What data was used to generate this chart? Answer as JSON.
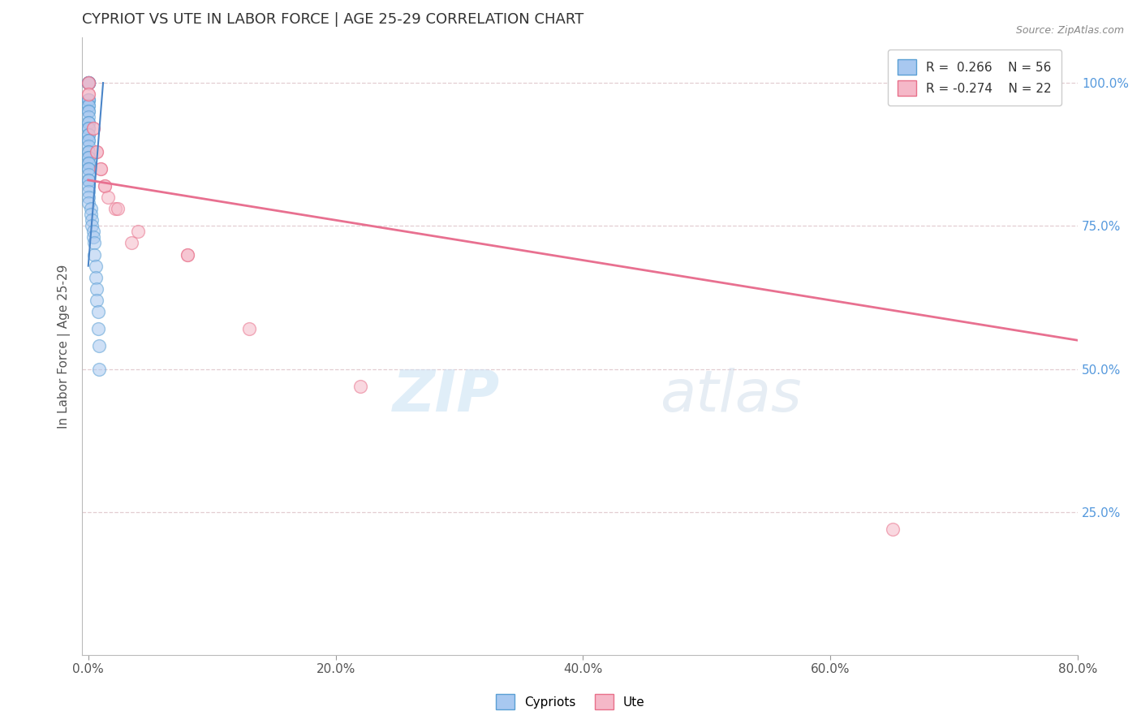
{
  "title": "CYPRIOT VS UTE IN LABOR FORCE | AGE 25-29 CORRELATION CHART",
  "source_text": "Source: ZipAtlas.com",
  "ylabel": "In Labor Force | Age 25-29",
  "xlim": [
    -0.005,
    0.8
  ],
  "ylim": [
    0.0,
    1.08
  ],
  "xticks": [
    0.0,
    0.2,
    0.4,
    0.6,
    0.8
  ],
  "xticklabels": [
    "0.0%",
    "20.0%",
    "40.0%",
    "60.0%",
    "80.0%"
  ],
  "yticks": [
    0.25,
    0.5,
    0.75,
    1.0
  ],
  "yticklabels": [
    "25.0%",
    "50.0%",
    "75.0%",
    "100.0%"
  ],
  "watermark_zip": "ZIP",
  "watermark_atlas": "atlas",
  "legend_r_blue": "R =  0.266",
  "legend_n_blue": "N = 56",
  "legend_r_pink": "R = -0.274",
  "legend_n_pink": "N = 22",
  "blue_fill": "#A8C8F0",
  "blue_edge": "#5A9FD4",
  "pink_fill": "#F5B8C8",
  "pink_edge": "#E8708A",
  "blue_line_color": "#4A85C8",
  "pink_line_color": "#E87090",
  "grid_color": "#E0C8CC",
  "cypriot_x": [
    0.0,
    0.0,
    0.0,
    0.0,
    0.0,
    0.0,
    0.0,
    0.0,
    0.0,
    0.0,
    0.0,
    0.0,
    0.0,
    0.0,
    0.0,
    0.0,
    0.0,
    0.0,
    0.0,
    0.0,
    0.0,
    0.0,
    0.0,
    0.0,
    0.0,
    0.0,
    0.0,
    0.0,
    0.0,
    0.0,
    0.0,
    0.0,
    0.0,
    0.0,
    0.0,
    0.0,
    0.0,
    0.0,
    0.0,
    0.0,
    0.002,
    0.002,
    0.003,
    0.003,
    0.004,
    0.004,
    0.005,
    0.005,
    0.006,
    0.006,
    0.007,
    0.007,
    0.008,
    0.008,
    0.009,
    0.009
  ],
  "cypriot_y": [
    1.0,
    1.0,
    1.0,
    1.0,
    1.0,
    1.0,
    1.0,
    1.0,
    0.97,
    0.97,
    0.97,
    0.96,
    0.96,
    0.95,
    0.95,
    0.94,
    0.93,
    0.93,
    0.92,
    0.92,
    0.91,
    0.91,
    0.9,
    0.9,
    0.89,
    0.88,
    0.88,
    0.87,
    0.87,
    0.86,
    0.86,
    0.85,
    0.85,
    0.84,
    0.83,
    0.83,
    0.82,
    0.81,
    0.8,
    0.79,
    0.78,
    0.77,
    0.76,
    0.75,
    0.74,
    0.73,
    0.72,
    0.7,
    0.68,
    0.66,
    0.64,
    0.62,
    0.6,
    0.57,
    0.54,
    0.5
  ],
  "ute_x": [
    0.0,
    0.0,
    0.0,
    0.0,
    0.004,
    0.004,
    0.007,
    0.007,
    0.01,
    0.01,
    0.013,
    0.013,
    0.016,
    0.022,
    0.024,
    0.035,
    0.04,
    0.08,
    0.08,
    0.13,
    0.22,
    0.65
  ],
  "ute_y": [
    1.0,
    1.0,
    0.98,
    0.98,
    0.92,
    0.92,
    0.88,
    0.88,
    0.85,
    0.85,
    0.82,
    0.82,
    0.8,
    0.78,
    0.78,
    0.72,
    0.74,
    0.7,
    0.7,
    0.57,
    0.47,
    0.22
  ],
  "blue_trendline": [
    0.0,
    0.012,
    0.68,
    1.0
  ],
  "pink_trendline": [
    0.0,
    0.8,
    0.83,
    0.55
  ]
}
